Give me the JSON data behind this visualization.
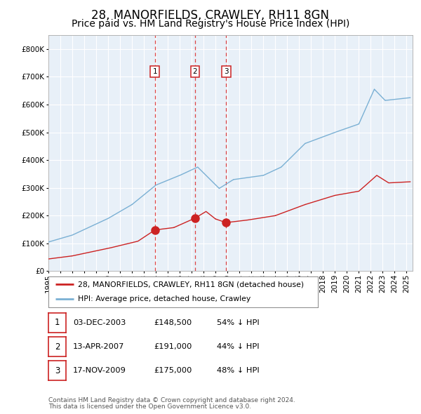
{
  "title": "28, MANORFIELDS, CRAWLEY, RH11 8GN",
  "subtitle": "Price paid vs. HM Land Registry's House Price Index (HPI)",
  "legend_line1": "28, MANORFIELDS, CRAWLEY, RH11 8GN (detached house)",
  "legend_line2": "HPI: Average price, detached house, Crawley",
  "footer1": "Contains HM Land Registry data © Crown copyright and database right 2024.",
  "footer2": "This data is licensed under the Open Government Licence v3.0.",
  "transactions": [
    {
      "num": 1,
      "date": "03-DEC-2003",
      "price": 148500,
      "pct": "54%",
      "dir": "↓"
    },
    {
      "num": 2,
      "date": "13-APR-2007",
      "price": 191000,
      "pct": "44%",
      "dir": "↓"
    },
    {
      "num": 3,
      "date": "17-NOV-2009",
      "price": 175000,
      "pct": "48%",
      "dir": "↓"
    }
  ],
  "transaction_dates_num": [
    2003.92,
    2007.28,
    2009.88
  ],
  "transaction_prices": [
    148500,
    191000,
    175000
  ],
  "hpi_color": "#7ab0d4",
  "price_color": "#cc2222",
  "vline_color": "#dd4444",
  "bg_plot_color": "#e8f0f8",
  "bg_fig_color": "#ffffff",
  "grid_color": "#ffffff",
  "ylim": [
    0,
    850000
  ],
  "xlim_start": 1995.0,
  "xlim_end": 2025.5,
  "title_fontsize": 12,
  "subtitle_fontsize": 10,
  "tick_fontsize": 7.5
}
